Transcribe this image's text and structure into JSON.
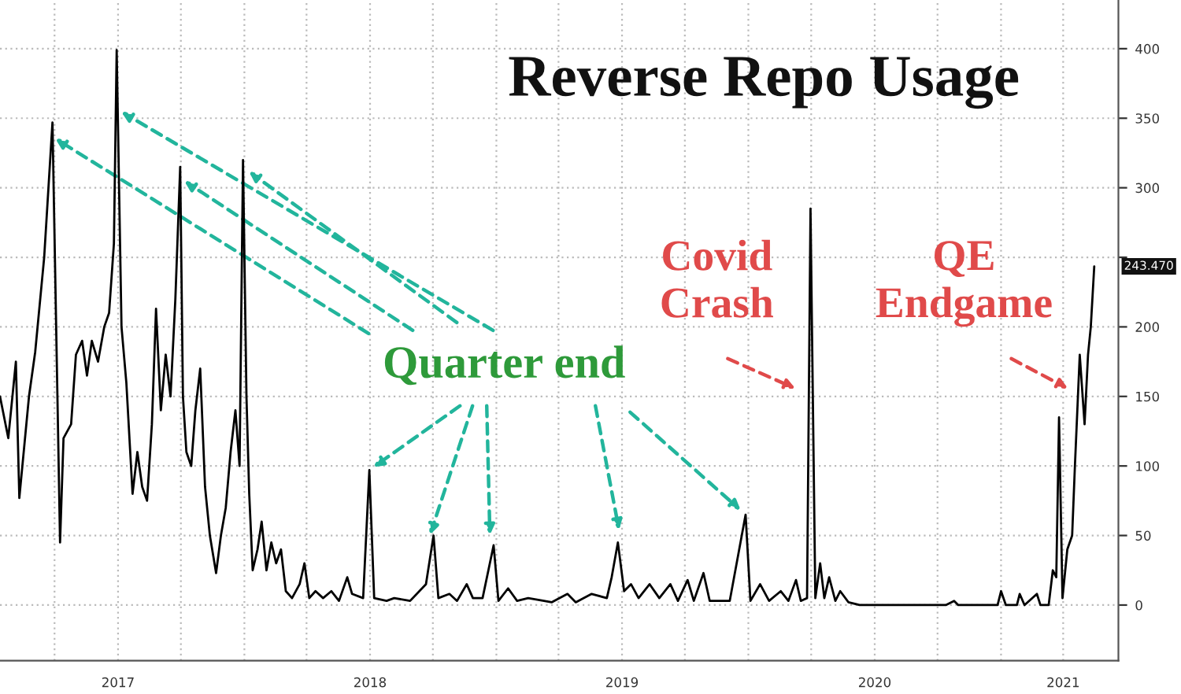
{
  "chart_data": {
    "type": "line",
    "title": "Reverse Repo Usage",
    "x": [
      "2017-01-12",
      "2017-01-24",
      "2017-02-04",
      "2017-02-09",
      "2017-02-23",
      "2017-03-04",
      "2017-03-17",
      "2017-03-29",
      "2017-04-09",
      "2017-04-14",
      "2017-04-25",
      "2017-05-02",
      "2017-05-11",
      "2017-05-18",
      "2017-05-25",
      "2017-06-03",
      "2017-06-12",
      "2017-06-19",
      "2017-06-26",
      "2017-06-30",
      "2017-07-07",
      "2017-07-14",
      "2017-07-23",
      "2017-07-30",
      "2017-08-06",
      "2017-08-13",
      "2017-08-20",
      "2017-08-26",
      "2017-09-02",
      "2017-09-09",
      "2017-09-16",
      "2017-09-23",
      "2017-09-30",
      "2017-10-04",
      "2017-10-09",
      "2017-10-16",
      "2017-10-22",
      "2017-10-29",
      "2017-11-05",
      "2017-11-12",
      "2017-11-17",
      "2017-11-21",
      "2017-11-28",
      "2017-12-05",
      "2017-12-12",
      "2017-12-19",
      "2017-12-25",
      "2017-12-30",
      "2018-01-04",
      "2018-01-08",
      "2018-01-13",
      "2018-01-20",
      "2018-01-26",
      "2018-02-02",
      "2018-02-09",
      "2018-02-16",
      "2018-02-23",
      "2018-03-02",
      "2018-03-11",
      "2018-03-22",
      "2018-03-29",
      "2018-04-05",
      "2018-04-14",
      "2018-04-25",
      "2018-05-07",
      "2018-05-18",
      "2018-05-30",
      "2018-06-06",
      "2018-06-22",
      "2018-07-01",
      "2018-07-08",
      "2018-07-26",
      "2018-08-06",
      "2018-08-29",
      "2018-09-21",
      "2018-10-02",
      "2018-10-09",
      "2018-10-25",
      "2018-11-05",
      "2018-11-19",
      "2018-11-28",
      "2018-12-12",
      "2018-12-28",
      "2019-01-04",
      "2019-01-18",
      "2019-01-31",
      "2019-02-16",
      "2019-03-11",
      "2019-03-22",
      "2019-04-14",
      "2019-04-26",
      "2019-05-19",
      "2019-06-10",
      "2019-06-17",
      "2019-06-26",
      "2019-07-05",
      "2019-07-15",
      "2019-07-26",
      "2019-08-11",
      "2019-08-25",
      "2019-09-10",
      "2019-09-21",
      "2019-10-05",
      "2019-10-14",
      "2019-10-28",
      "2019-11-06",
      "2019-11-24",
      "2019-12-05",
      "2019-12-28",
      "2020-01-04",
      "2020-01-18",
      "2020-01-31",
      "2020-02-17",
      "2020-02-28",
      "2020-03-10",
      "2020-03-17",
      "2020-03-26",
      "2020-03-31",
      "2020-04-07",
      "2020-04-14",
      "2020-04-20",
      "2020-04-27",
      "2020-05-06",
      "2020-05-13",
      "2020-05-25",
      "2020-06-10",
      "2020-10-13",
      "2020-10-25",
      "2020-10-31",
      "2020-12-27",
      "2021-01-01",
      "2021-01-08",
      "2021-01-24",
      "2021-01-28",
      "2021-02-04",
      "2021-02-22",
      "2021-02-27",
      "2021-03-11",
      "2021-03-17",
      "2021-03-22",
      "2021-03-26",
      "2021-03-31",
      "2021-04-07",
      "2021-04-14",
      "2021-04-18",
      "2021-04-25",
      "2021-05-02",
      "2021-05-07",
      "2021-05-11",
      "2021-05-16"
    ],
    "series": [
      {
        "color": "#000000",
        "values": [
          150,
          120,
          175,
          77,
          150,
          182,
          250,
          347,
          45,
          120,
          130,
          180,
          190,
          165,
          190,
          175,
          200,
          210,
          260,
          399,
          200,
          160,
          80,
          110,
          85,
          75,
          130,
          213,
          140,
          180,
          150,
          220,
          315,
          150,
          110,
          100,
          140,
          170,
          85,
          50,
          35,
          23,
          50,
          70,
          110,
          140,
          100,
          320,
          150,
          80,
          25,
          40,
          60,
          25,
          45,
          30,
          40,
          10,
          5,
          15,
          30,
          5,
          10,
          5,
          10,
          3,
          20,
          8,
          5,
          97,
          5,
          3,
          5,
          3,
          15,
          50,
          5,
          8,
          3,
          15,
          5,
          5,
          43,
          3,
          12,
          3,
          5,
          3,
          2,
          8,
          2,
          8,
          5,
          20,
          45,
          10,
          15,
          5,
          15,
          5,
          15,
          3,
          18,
          3,
          23,
          3,
          3,
          3,
          65,
          3,
          15,
          3,
          10,
          3,
          18,
          3,
          5,
          285,
          5,
          30,
          5,
          20,
          3,
          10,
          2,
          0,
          0,
          3,
          0,
          0,
          10,
          0,
          0,
          8,
          0,
          8,
          0,
          0,
          25,
          20,
          135,
          5,
          40,
          50,
          100,
          180,
          130,
          180,
          200,
          243.47
        ]
      }
    ],
    "xlim": [
      "2017-01-12",
      "2021-06-20"
    ],
    "xticks": [
      {
        "value": "2017-04-01",
        "label": null
      },
      {
        "value": "2017-07-02",
        "label": "2017"
      },
      {
        "value": "2017-10-01",
        "label": null
      },
      {
        "value": "2018-01-01",
        "label": null
      },
      {
        "value": "2018-04-01",
        "label": null
      },
      {
        "value": "2018-07-02",
        "label": "2018"
      },
      {
        "value": "2018-10-01",
        "label": null
      },
      {
        "value": "2019-01-01",
        "label": null
      },
      {
        "value": "2019-04-01",
        "label": null
      },
      {
        "value": "2019-07-02",
        "label": "2019"
      },
      {
        "value": "2019-10-01",
        "label": null
      },
      {
        "value": "2020-01-01",
        "label": null
      },
      {
        "value": "2020-04-01",
        "label": null
      },
      {
        "value": "2020-07-02",
        "label": "2020"
      },
      {
        "value": "2020-10-01",
        "label": null
      },
      {
        "value": "2021-01-01",
        "label": null
      },
      {
        "value": "2021-04-01",
        "label": "2021"
      }
    ],
    "ylim": [
      -40,
      435
    ],
    "yticks": [
      0,
      50,
      100,
      150,
      200,
      {
        "value": 250,
        "label": null
      },
      300,
      350,
      400
    ],
    "grid": true,
    "line_style": "solid",
    "annotations": [
      {
        "text": "Quarter end",
        "x": "2019-12-28",
        "y": 65
      },
      "Covid\nCrash",
      "QE\nEndgame",
      {
        "text": "243.470",
        "x": "2021-05-16",
        "y": 243.47
      }
    ]
  }
}
